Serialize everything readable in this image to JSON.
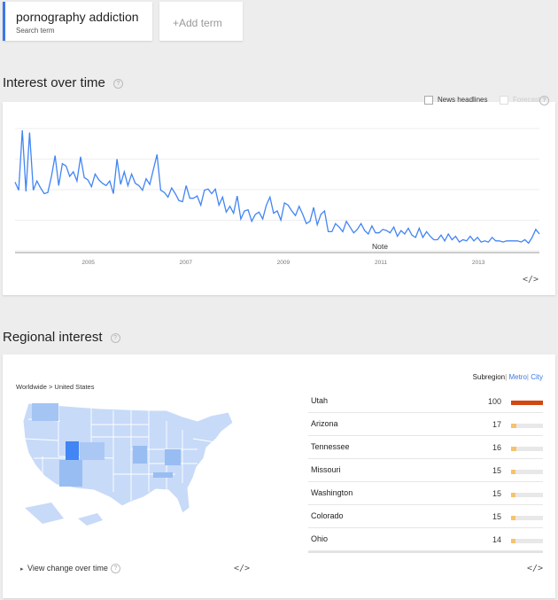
{
  "search_terms": [
    {
      "name": "pornography addiction",
      "sub": "Search term"
    }
  ],
  "add_term": "+Add term",
  "interest_over_time": {
    "title": "Interest over time",
    "news_headlines": "News headlines",
    "forecast": "Forecast",
    "note": "Note",
    "embed": "</>"
  },
  "chart_data": {
    "type": "line",
    "x_ticks": [
      "2005",
      "2007",
      "2009",
      "2011",
      "2013"
    ],
    "x_start": 2004.0,
    "x_end": 2014.75,
    "y_range": [
      0,
      100
    ],
    "values": [
      55,
      48,
      100,
      47,
      98,
      48,
      56,
      50,
      45,
      46,
      60,
      78,
      52,
      71,
      69,
      60,
      64,
      56,
      77,
      59,
      57,
      51,
      62,
      57,
      54,
      52,
      56,
      45,
      75,
      53,
      64,
      52,
      62,
      54,
      52,
      48,
      58,
      53,
      66,
      79,
      48,
      46,
      42,
      50,
      45,
      39,
      38,
      52,
      41,
      41,
      43,
      35,
      48,
      49,
      45,
      49,
      35,
      42,
      29,
      34,
      28,
      43,
      23,
      30,
      31,
      21,
      27,
      29,
      23,
      35,
      42,
      28,
      30,
      22,
      37,
      35,
      30,
      26,
      34,
      27,
      19,
      21,
      33,
      18,
      27,
      30,
      12,
      12,
      19,
      16,
      12,
      21,
      16,
      11,
      14,
      19,
      13,
      10,
      17,
      11,
      11,
      14,
      13,
      11,
      16,
      8,
      13,
      10,
      15,
      9,
      7,
      15,
      7,
      12,
      8,
      5,
      5,
      9,
      4,
      10,
      5,
      8,
      3,
      5,
      4,
      8,
      4,
      7,
      3,
      4,
      3,
      7,
      4,
      4,
      3,
      4,
      4,
      4,
      4,
      3,
      5,
      2,
      7,
      14,
      10
    ],
    "color": "#4285f4",
    "grid": true
  },
  "regional_interest": {
    "title": "Regional interest",
    "breadcrumb": "Worldwide > United States",
    "subregion": "Subregion",
    "metro": "Metro",
    "city": "City",
    "view_change": "View change over time",
    "embed": "</>",
    "regions": [
      {
        "name": "Utah",
        "value": 100
      },
      {
        "name": "Arizona",
        "value": 17
      },
      {
        "name": "Tennessee",
        "value": 16
      },
      {
        "name": "Missouri",
        "value": 15
      },
      {
        "name": "Washington",
        "value": 15
      },
      {
        "name": "Colorado",
        "value": 15
      },
      {
        "name": "Ohio",
        "value": 14
      }
    ]
  }
}
